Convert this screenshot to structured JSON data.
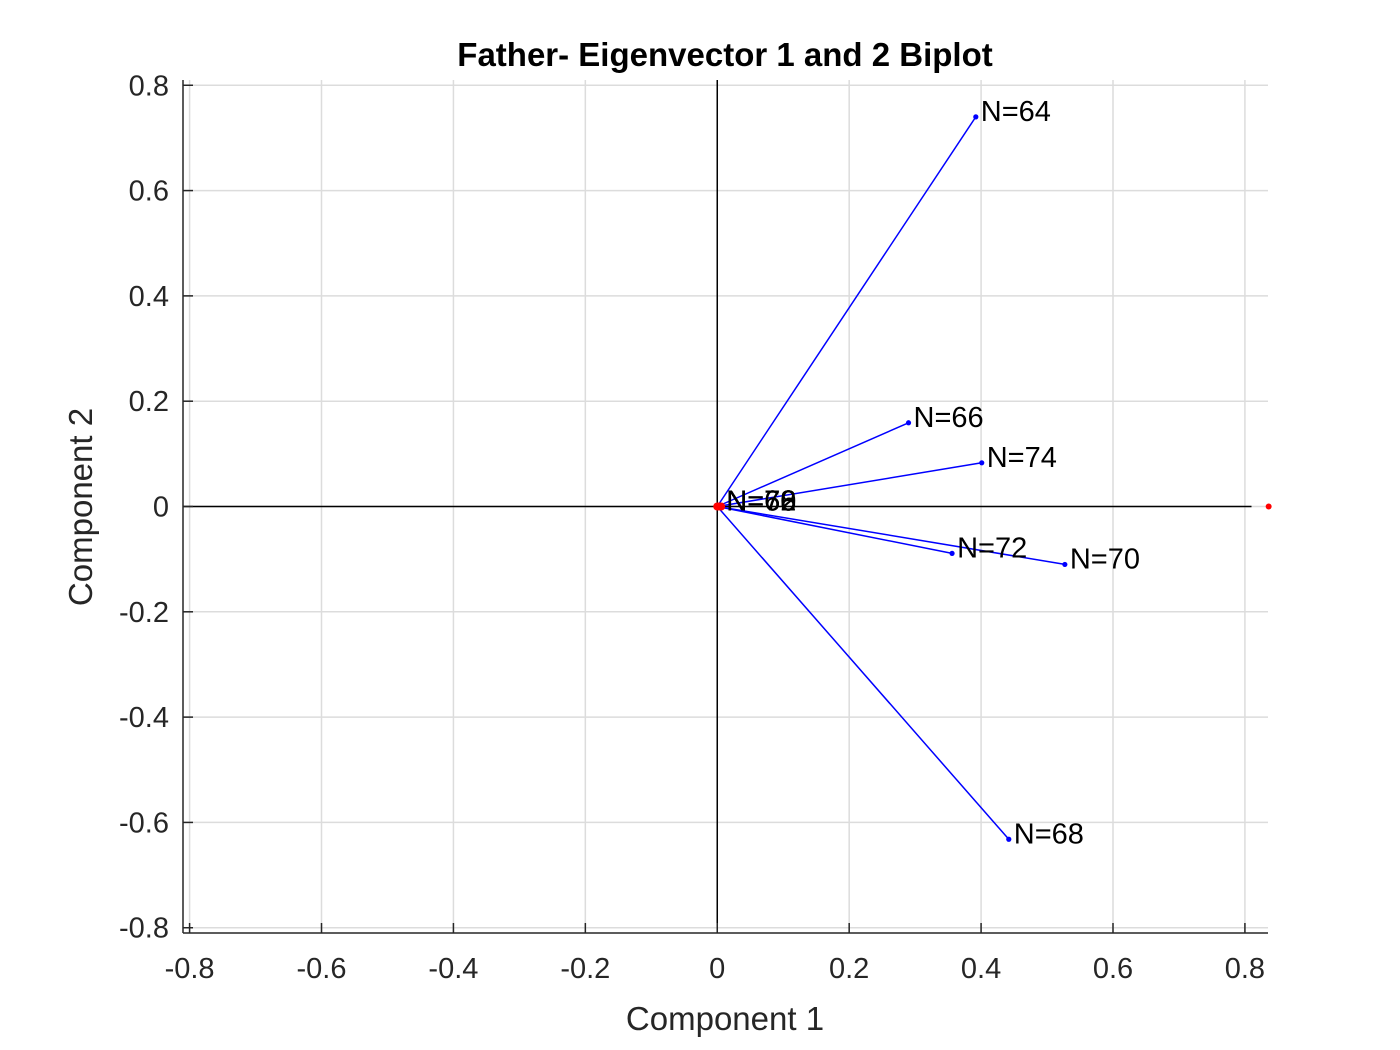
{
  "chart_data": {
    "type": "scatter",
    "title": "Father- Eigenvector 1 and 2 Biplot",
    "xlabel": "Component 1",
    "ylabel": "Component 2",
    "xlim": [
      -0.81,
      0.835
    ],
    "ylim": [
      -0.81,
      0.81
    ],
    "grid": true,
    "x_ticks": [
      -0.8,
      -0.6,
      -0.4,
      -0.2,
      0,
      0.2,
      0.4,
      0.6,
      0.8
    ],
    "x_tick_labels": [
      "-0.8",
      "-0.6",
      "-0.4",
      "-0.2",
      "0",
      "0.2",
      "0.4",
      "0.6",
      "0.8"
    ],
    "y_ticks": [
      0.8,
      0.6,
      0.4,
      0.2,
      0,
      -0.2,
      -0.4,
      -0.6,
      -0.8
    ],
    "y_tick_labels": [
      "0.8",
      "0.6",
      "0.4",
      "0.2",
      "0",
      "-0.2",
      "-0.4",
      "-0.6",
      "-0.8"
    ],
    "vector_color": "#0000ff",
    "score_color": "#ff0000",
    "vectors": [
      {
        "label": "N=64",
        "x": 0.392,
        "y": 0.74
      },
      {
        "label": "N=66",
        "x": 0.29,
        "y": 0.159
      },
      {
        "label": "N=74",
        "x": 0.401,
        "y": 0.083
      },
      {
        "label": "N=72",
        "x": 0.356,
        "y": -0.089
      },
      {
        "label": "N=70",
        "x": 0.527,
        "y": -0.11
      },
      {
        "label": "N=68",
        "x": 0.442,
        "y": -0.632
      },
      {
        "label": "N=60",
        "x": 0.006,
        "y": 0.0
      },
      {
        "label": "N=62",
        "x": 0.006,
        "y": 0.0
      },
      {
        "label": "N=76",
        "x": 0.006,
        "y": 0.0
      },
      {
        "label": "N=78",
        "x": 0.006,
        "y": 0.0
      }
    ],
    "scores": [
      {
        "x": 0.0,
        "y": 0.0
      },
      {
        "x": 0.003,
        "y": 0.0
      },
      {
        "x": 0.006,
        "y": 0.0
      },
      {
        "x": 0.836,
        "y": 0.0
      }
    ]
  }
}
